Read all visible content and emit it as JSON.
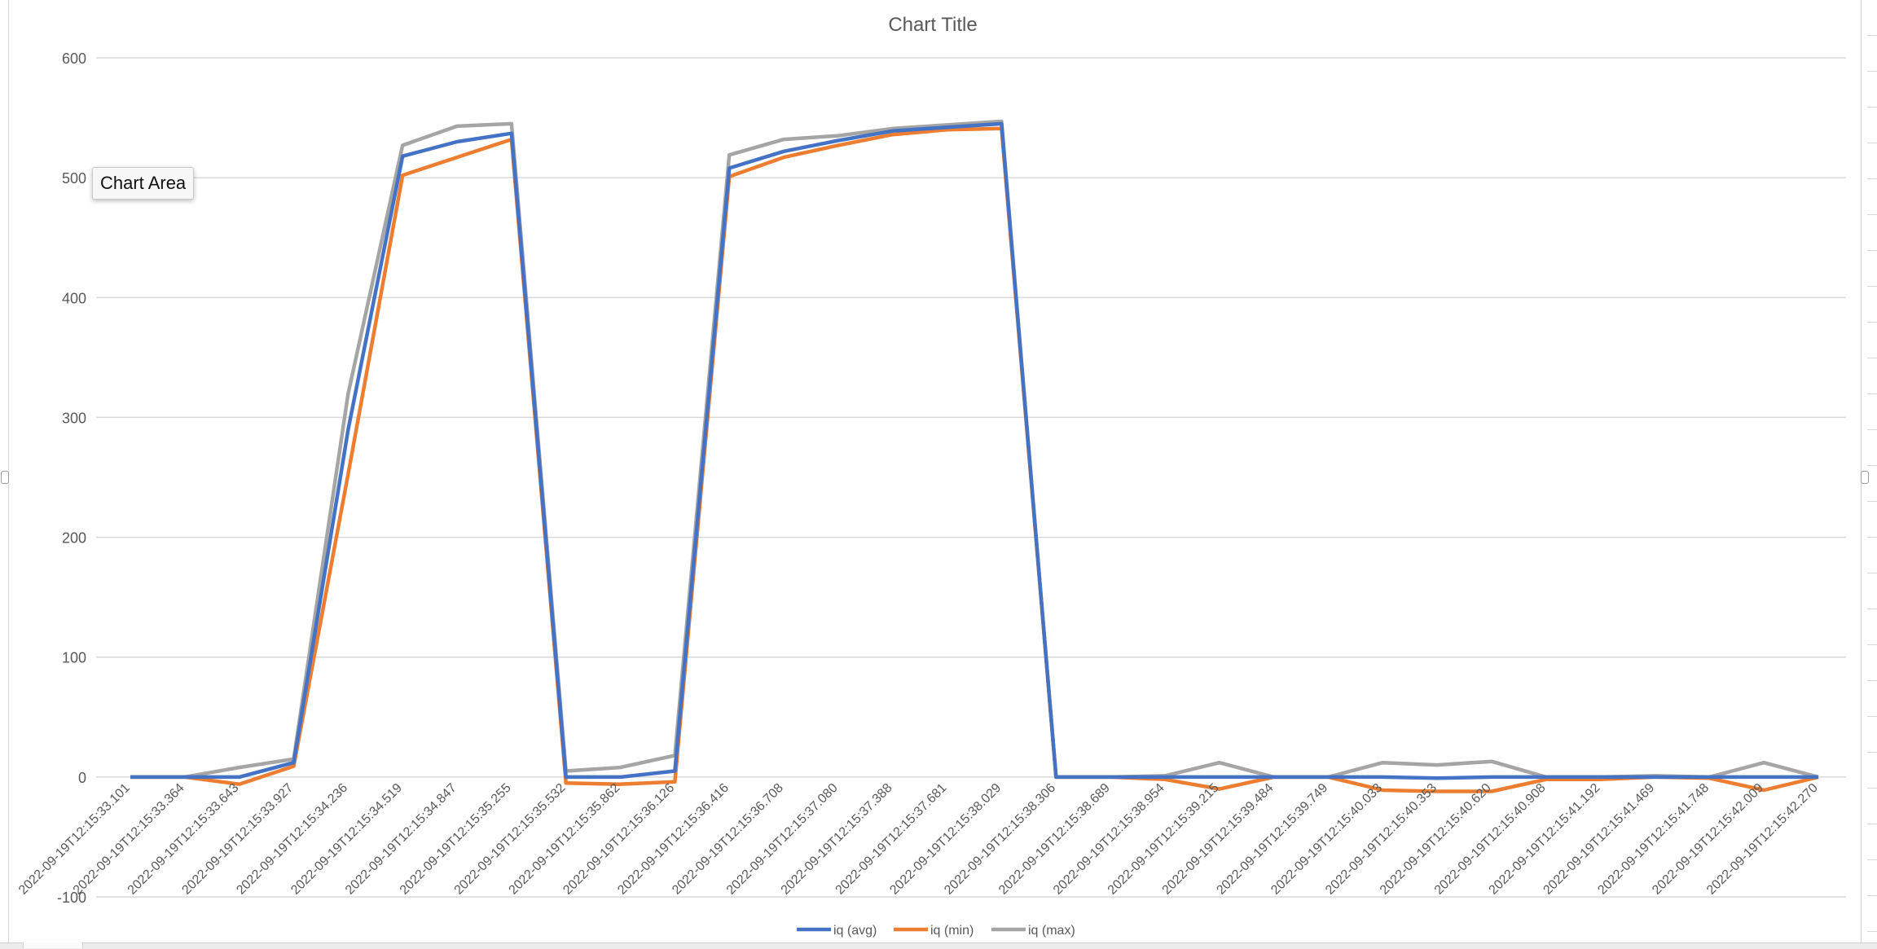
{
  "chart_data": {
    "type": "line",
    "title": "Chart Title",
    "xlabel": "",
    "ylabel": "",
    "ylim": [
      -100,
      600
    ],
    "yticks": [
      -100,
      0,
      100,
      200,
      300,
      400,
      500,
      600
    ],
    "grid": true,
    "legend_position": "bottom",
    "categories": [
      "2022-09-19T12:15:33.101",
      "2022-09-19T12:15:33.364",
      "2022-09-19T12:15:33.643",
      "2022-09-19T12:15:33.927",
      "2022-09-19T12:15:34.236",
      "2022-09-19T12:15:34.519",
      "2022-09-19T12:15:34.847",
      "2022-09-19T12:15:35.255",
      "2022-09-19T12:15:35.532",
      "2022-09-19T12:15:35.862",
      "2022-09-19T12:15:36.126",
      "2022-09-19T12:15:36.416",
      "2022-09-19T12:15:36.708",
      "2022-09-19T12:15:37.080",
      "2022-09-19T12:15:37.388",
      "2022-09-19T12:15:37.681",
      "2022-09-19T12:15:38.029",
      "2022-09-19T12:15:38.306",
      "2022-09-19T12:15:38.689",
      "2022-09-19T12:15:38.954",
      "2022-09-19T12:15:39.215",
      "2022-09-19T12:15:39.484",
      "2022-09-19T12:15:39.749",
      "2022-09-19T12:15:40.033",
      "2022-09-19T12:15:40.353",
      "2022-09-19T12:15:40.620",
      "2022-09-19T12:15:40.908",
      "2022-09-19T12:15:41.192",
      "2022-09-19T12:15:41.469",
      "2022-09-19T12:15:41.748",
      "2022-09-19T12:15:42.009",
      "2022-09-19T12:15:42.270"
    ],
    "series": [
      {
        "name": "iq (avg)",
        "color": "#4472c4",
        "values": [
          0,
          0,
          0,
          12,
          290,
          518,
          530,
          537,
          0,
          0,
          5,
          508,
          522,
          531,
          539,
          542,
          545,
          0,
          0,
          0,
          0,
          0,
          0,
          0,
          -1,
          0,
          0,
          0,
          0,
          0,
          0,
          0
        ]
      },
      {
        "name": "iq (min)",
        "color": "#ed7d31",
        "values": [
          0,
          0,
          -6,
          9,
          253,
          502,
          517,
          532,
          -5,
          -6,
          -4,
          501,
          517,
          527,
          536,
          540,
          541,
          0,
          0,
          -2,
          -10,
          0,
          0,
          -11,
          -12,
          -12,
          -2,
          -2,
          0,
          -1,
          -11,
          0
        ]
      },
      {
        "name": "iq (max)",
        "color": "#a5a5a5",
        "values": [
          0,
          0,
          8,
          15,
          320,
          527,
          543,
          545,
          5,
          8,
          18,
          519,
          532,
          535,
          541,
          544,
          547,
          0,
          0,
          1,
          12,
          0,
          0,
          12,
          10,
          13,
          0,
          0,
          1,
          0,
          12,
          0
        ]
      }
    ],
    "tooltip": "Chart Area"
  }
}
